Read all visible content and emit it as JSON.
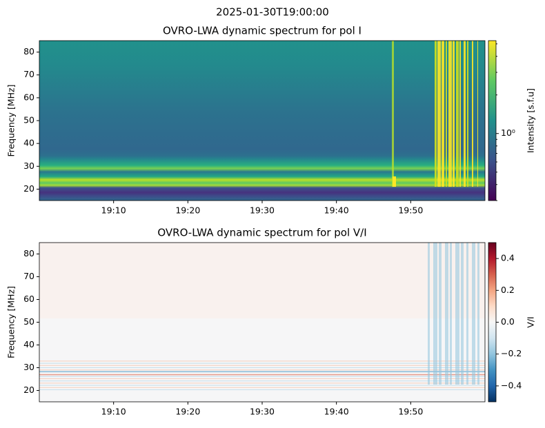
{
  "suptitle": "2025-01-30T19:00:00",
  "chart_data": [
    {
      "type": "heatmap",
      "title": "OVRO-LWA dynamic spectrum for pol I",
      "y_label": "Frequency [MHz]",
      "xlim": [
        0,
        60
      ],
      "xticks": [
        {
          "value": 10,
          "label": "19:10"
        },
        {
          "value": 20,
          "label": "19:20"
        },
        {
          "value": 30,
          "label": "19:30"
        },
        {
          "value": 40,
          "label": "19:40"
        },
        {
          "value": 50,
          "label": "19:50"
        }
      ],
      "ylim": [
        15,
        85
      ],
      "yticks": [
        20,
        30,
        40,
        50,
        60,
        70,
        80
      ],
      "colorbar": {
        "label": "Intensity [s.f.u]",
        "scale": "log",
        "colormap": "viridis",
        "lim": [
          0.3,
          5.3
        ],
        "ticks": [
          {
            "value": 1,
            "label": "10⁰"
          }
        ]
      }
    },
    {
      "type": "heatmap",
      "title": "OVRO-LWA dynamic spectrum for pol V/I",
      "y_label": "Frequency [MHz]",
      "xlim": [
        0,
        60
      ],
      "xticks": [
        {
          "value": 10,
          "label": "19:10"
        },
        {
          "value": 20,
          "label": "19:20"
        },
        {
          "value": 30,
          "label": "19:30"
        },
        {
          "value": 40,
          "label": "19:40"
        },
        {
          "value": 50,
          "label": "19:50"
        }
      ],
      "ylim": [
        15,
        85
      ],
      "yticks": [
        20,
        30,
        40,
        50,
        60,
        70,
        80
      ],
      "colorbar": {
        "label": "V/I",
        "scale": "linear",
        "colormap": "RdBu_r",
        "lim": [
          -0.5,
          0.5
        ],
        "ticks": [
          {
            "value": -0.4,
            "label": "−0.4"
          },
          {
            "value": -0.2,
            "label": "−0.2"
          },
          {
            "value": 0,
            "label": "0.0"
          },
          {
            "value": 0.2,
            "label": "0.2"
          },
          {
            "value": 0.4,
            "label": "0.4"
          }
        ]
      }
    }
  ]
}
